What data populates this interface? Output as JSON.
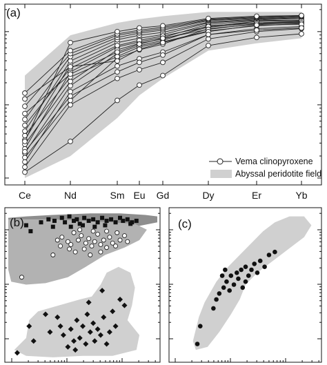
{
  "panel_a": {
    "label": "(a)"
  },
  "panel_b": {
    "label": "(b)"
  },
  "panel_c": {
    "label": "(c)"
  },
  "colors": {
    "field": "#d0d0d0",
    "field_dark": "#8e8e8e",
    "field_mid": "#b2b2b2",
    "line": "#222222",
    "marker_fill": "#ffffff",
    "solid": "#111111"
  },
  "chart_data": [
    {
      "type": "line",
      "panel": "(a)",
      "categories": [
        "Ce",
        "Nd",
        "Sm",
        "Eu",
        "Gd",
        "Dy",
        "Er",
        "Yb"
      ],
      "y_scale": "log",
      "y_note": "no numeric tick labels printed; values are relative (log10 units, 0 = bottom of axis, 2.3 = top)",
      "legend": {
        "placement": "bottom-right",
        "entries": [
          "Vema clinopyroxene",
          "Abyssal peridotite field"
        ]
      },
      "field_upper": [
        1.4,
        1.95,
        2.12,
        2.17,
        2.21,
        2.27,
        2.27,
        2.27
      ],
      "field_lower": [
        0.0,
        0.3,
        0.82,
        1.13,
        1.36,
        1.74,
        1.84,
        1.91
      ],
      "series": [
        {
          "values": [
            0.08,
            0.5,
            1.06,
            1.27,
            1.4,
            1.81,
            1.92,
            1.97
          ]
        },
        {
          "values": [
            0.15,
            1.0,
            1.36,
            1.48,
            1.58,
            1.9,
            2.0,
            2.04
          ]
        },
        {
          "values": [
            0.22,
            1.18,
            1.53,
            1.63,
            1.72,
            1.96,
            2.04,
            2.07
          ]
        },
        {
          "values": [
            0.28,
            1.06,
            1.64,
            1.75,
            1.83,
            2.04,
            2.1,
            2.12
          ]
        },
        {
          "values": [
            0.34,
            1.26,
            1.7,
            1.81,
            1.88,
            2.08,
            2.12,
            2.14
          ]
        },
        {
          "values": [
            0.4,
            1.45,
            1.79,
            1.86,
            1.92,
            2.1,
            2.15,
            2.16
          ]
        },
        {
          "values": [
            0.46,
            1.32,
            1.75,
            1.84,
            1.9,
            2.06,
            2.12,
            2.13
          ]
        },
        {
          "values": [
            0.52,
            1.55,
            1.85,
            1.91,
            1.96,
            2.12,
            2.16,
            2.18
          ]
        },
        {
          "values": [
            0.58,
            1.38,
            1.66,
            1.79,
            1.86,
            2.01,
            2.08,
            2.11
          ]
        },
        {
          "values": [
            0.64,
            1.6,
            1.89,
            1.95,
            1.99,
            2.13,
            2.17,
            2.19
          ]
        },
        {
          "values": [
            0.72,
            1.5,
            1.81,
            1.88,
            1.94,
            2.07,
            2.14,
            2.15
          ]
        },
        {
          "values": [
            0.8,
            1.66,
            1.92,
            1.98,
            2.02,
            2.15,
            2.18,
            2.2
          ]
        },
        {
          "values": [
            0.88,
            1.42,
            1.72,
            1.83,
            1.91,
            2.03,
            2.11,
            2.12
          ]
        },
        {
          "values": [
            0.98,
            1.7,
            1.95,
            2.0,
            2.04,
            2.16,
            2.19,
            2.21
          ]
        },
        {
          "values": [
            1.08,
            1.52,
            1.6,
            1.76,
            1.85,
            2.0,
            2.09,
            2.1
          ]
        },
        {
          "values": [
            1.16,
            1.74,
            1.97,
            2.02,
            2.06,
            2.17,
            2.2,
            2.22
          ]
        },
        {
          "values": [
            0.5,
            1.85,
            2.0,
            2.05,
            2.08,
            2.18,
            2.21,
            2.22
          ]
        },
        {
          "values": [
            0.36,
            1.12,
            1.45,
            1.58,
            1.68,
            1.96,
            2.02,
            2.05
          ]
        }
      ]
    },
    {
      "type": "scatter",
      "panel": "(b)",
      "note": "no axis labels or numeric ticks printed; values in relative units (x 0-100, y 0-100)",
      "fields": [
        {
          "tone": "dark",
          "outline": [
            [
              0,
              95
            ],
            [
              12,
              96
            ],
            [
              30,
              97
            ],
            [
              55,
              98
            ],
            [
              75,
              98
            ],
            [
              92,
              97
            ],
            [
              100,
              96
            ],
            [
              100,
              92
            ],
            [
              80,
              88
            ],
            [
              60,
              84
            ],
            [
              40,
              80
            ],
            [
              25,
              74
            ],
            [
              10,
              70
            ],
            [
              0,
              66
            ]
          ]
        },
        {
          "tone": "mid",
          "outline": [
            [
              0,
              94
            ],
            [
              10,
              94
            ],
            [
              30,
              94
            ],
            [
              50,
              93
            ],
            [
              70,
              92
            ],
            [
              85,
              91
            ],
            [
              93,
              87
            ],
            [
              88,
              80
            ],
            [
              78,
              75
            ],
            [
              65,
              70
            ],
            [
              52,
              62
            ],
            [
              40,
              55
            ],
            [
              25,
              51
            ],
            [
              12,
              50
            ],
            [
              2,
              52
            ],
            [
              0,
              60
            ]
          ]
        },
        {
          "tone": "light",
          "outline": [
            [
              4,
              6
            ],
            [
              12,
              14
            ],
            [
              14,
              26
            ],
            [
              20,
              32
            ],
            [
              34,
              36
            ],
            [
              48,
              40
            ],
            [
              56,
              42
            ],
            [
              62,
              50
            ],
            [
              66,
              58
            ],
            [
              74,
              62
            ],
            [
              82,
              58
            ],
            [
              85,
              48
            ],
            [
              83,
              36
            ],
            [
              80,
              26
            ],
            [
              88,
              16
            ],
            [
              86,
              6
            ],
            [
              70,
              2
            ],
            [
              50,
              2
            ],
            [
              30,
              1
            ],
            [
              12,
              2
            ]
          ]
        }
      ],
      "series": [
        {
          "marker": "open-circle",
          "points": [
            [
              33,
              80
            ],
            [
              36,
              82
            ],
            [
              40,
              79
            ],
            [
              42,
              77
            ],
            [
              44,
              85
            ],
            [
              47,
              80
            ],
            [
              49,
              83
            ],
            [
              52,
              78
            ],
            [
              54,
              81
            ],
            [
              56,
              76
            ],
            [
              58,
              79
            ],
            [
              60,
              84
            ],
            [
              62,
              77
            ],
            [
              64,
              80
            ],
            [
              66,
              75
            ],
            [
              68,
              82
            ],
            [
              70,
              78
            ],
            [
              72,
              76
            ],
            [
              75,
              80
            ],
            [
              78,
              83
            ],
            [
              80,
              79
            ],
            [
              73,
              85
            ],
            [
              66,
              86
            ],
            [
              57,
              86
            ],
            [
              48,
              87
            ],
            [
              41,
              74
            ],
            [
              45,
              72
            ],
            [
              51,
              74
            ],
            [
              55,
              70
            ],
            [
              30,
              70
            ],
            [
              35,
              76
            ],
            [
              9,
              55
            ],
            [
              62,
              72
            ]
          ]
        },
        {
          "marker": "filled-square",
          "points": [
            [
              22,
              92
            ],
            [
              27,
              94
            ],
            [
              31,
              93
            ],
            [
              36,
              95
            ],
            [
              38,
              92
            ],
            [
              41,
              96
            ],
            [
              44,
              93
            ],
            [
              46,
              94
            ],
            [
              48,
              91
            ],
            [
              51,
              95
            ],
            [
              54,
              93
            ],
            [
              57,
              94
            ],
            [
              60,
              92
            ],
            [
              63,
              95
            ],
            [
              66,
              93
            ],
            [
              69,
              94
            ],
            [
              72,
              92
            ],
            [
              75,
              95
            ],
            [
              77,
              93
            ],
            [
              80,
              94
            ],
            [
              83,
              92
            ],
            [
              86,
              93
            ],
            [
              30,
              89
            ],
            [
              42,
              89
            ],
            [
              50,
              90
            ],
            [
              58,
              89
            ],
            [
              12,
              90
            ],
            [
              15,
              86
            ],
            [
              65,
              90
            ],
            [
              82,
              91
            ]
          ]
        },
        {
          "marker": "filled-diamond",
          "points": [
            [
              6,
              4
            ],
            [
              14,
              22
            ],
            [
              17,
              12
            ],
            [
              25,
              30
            ],
            [
              28,
              18
            ],
            [
              33,
              28
            ],
            [
              37,
              16
            ],
            [
              40,
              8
            ],
            [
              42,
              20
            ],
            [
              44,
              12
            ],
            [
              46,
              26
            ],
            [
              48,
              14
            ],
            [
              50,
              22
            ],
            [
              52,
              10
            ],
            [
              53,
              30
            ],
            [
              55,
              18
            ],
            [
              57,
              24
            ],
            [
              58,
              12
            ],
            [
              60,
              20
            ],
            [
              62,
              16
            ],
            [
              64,
              28
            ],
            [
              66,
              10
            ],
            [
              68,
              18
            ],
            [
              70,
              32
            ],
            [
              72,
              22
            ],
            [
              75,
              40
            ],
            [
              78,
              36
            ],
            [
              45,
              6
            ],
            [
              35,
              22
            ],
            [
              63,
              46
            ],
            [
              54,
              38
            ]
          ]
        }
      ]
    },
    {
      "type": "scatter",
      "panel": "(c)",
      "note": "no axis labels or numeric ticks printed; values in relative units (x 0-100, y 0-100)",
      "field": [
        [
          14,
          12
        ],
        [
          18,
          28
        ],
        [
          22,
          38
        ],
        [
          30,
          52
        ],
        [
          38,
          62
        ],
        [
          46,
          70
        ],
        [
          54,
          78
        ],
        [
          62,
          86
        ],
        [
          70,
          92
        ],
        [
          80,
          96
        ],
        [
          90,
          96
        ],
        [
          95,
          90
        ],
        [
          90,
          82
        ],
        [
          82,
          76
        ],
        [
          74,
          70
        ],
        [
          66,
          64
        ],
        [
          58,
          58
        ],
        [
          50,
          50
        ],
        [
          46,
          40
        ],
        [
          40,
          30
        ],
        [
          32,
          18
        ],
        [
          24,
          8
        ],
        [
          16,
          6
        ]
      ],
      "series": [
        {
          "marker": "filled-circle",
          "points": [
            [
              17,
              10
            ],
            [
              19,
              22
            ],
            [
              28,
              34
            ],
            [
              30,
              40
            ],
            [
              35,
              48
            ],
            [
              37,
              52
            ],
            [
              39,
              46
            ],
            [
              40,
              56
            ],
            [
              42,
              50
            ],
            [
              44,
              58
            ],
            [
              45,
              54
            ],
            [
              47,
              60
            ],
            [
              48,
              48
            ],
            [
              50,
              62
            ],
            [
              52,
              56
            ],
            [
              54,
              60
            ],
            [
              56,
              64
            ],
            [
              58,
              58
            ],
            [
              60,
              66
            ],
            [
              63,
              62
            ],
            [
              66,
              70
            ],
            [
              70,
              72
            ],
            [
              36,
              60
            ],
            [
              34,
              56
            ],
            [
              32,
              44
            ],
            [
              50,
              52
            ]
          ]
        }
      ]
    }
  ]
}
